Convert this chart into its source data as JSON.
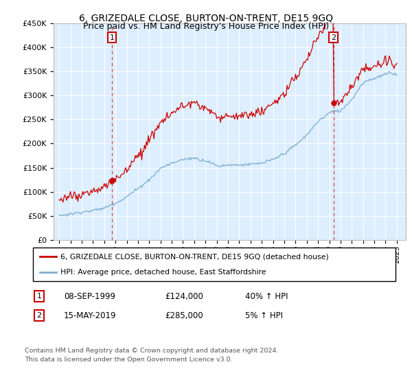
{
  "title": "6, GRIZEDALE CLOSE, BURTON-ON-TRENT, DE15 9GQ",
  "subtitle": "Price paid vs. HM Land Registry's House Price Index (HPI)",
  "legend_line1": "6, GRIZEDALE CLOSE, BURTON-ON-TRENT, DE15 9GQ (detached house)",
  "legend_line2": "HPI: Average price, detached house, East Staffordshire",
  "annotation1_date": "08-SEP-1999",
  "annotation1_price": "£124,000",
  "annotation1_hpi": "40% ↑ HPI",
  "annotation2_date": "15-MAY-2019",
  "annotation2_price": "£285,000",
  "annotation2_hpi": "5% ↑ HPI",
  "footer": "Contains HM Land Registry data © Crown copyright and database right 2024.\nThis data is licensed under the Open Government Licence v3.0.",
  "purchase1_year": 1999.69,
  "purchase1_value": 124000,
  "purchase2_year": 2019.37,
  "purchase2_value": 285000,
  "ylim": [
    0,
    450000
  ],
  "xlim": [
    1994.5,
    2025.8
  ],
  "red_color": "#cc0000",
  "blue_color": "#7aadcf",
  "bg_color": "#ddeeff",
  "grid_color": "#ffffff",
  "annotation_box_color": "#cc0000"
}
